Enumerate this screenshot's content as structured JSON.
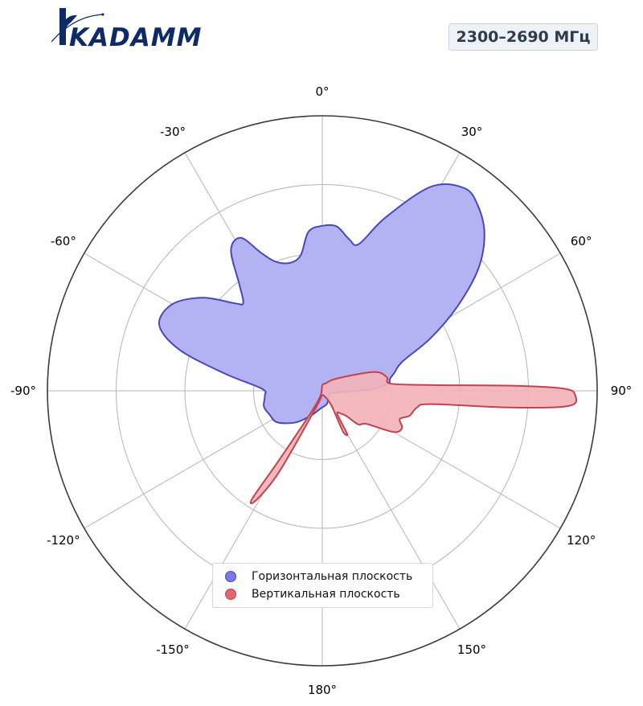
{
  "brand": {
    "name": "KADAMM"
  },
  "frequency_badge": "2300–2690 МГц",
  "chart_data": {
    "type": "polar-area",
    "title": "",
    "theta_zero": "top",
    "theta_direction": "clockwise",
    "theta_ticks": [
      0,
      30,
      60,
      90,
      120,
      150,
      180,
      -150,
      -120,
      -90,
      -60,
      -30
    ],
    "theta_tick_labels": [
      "0°",
      "30°",
      "60°",
      "90°",
      "120°",
      "150°",
      "180°",
      "-150°",
      "-120°",
      "-90°",
      "-60°",
      "-30°"
    ],
    "r_range": [
      0,
      1
    ],
    "r_grid": [
      0.25,
      0.5,
      0.75
    ],
    "grid": true,
    "legend_position": "bottom-center",
    "colors": {
      "horizontal_fill": "#b3b3f4",
      "horizontal_line": "#4b47b8",
      "vertical_fill": "#f2b3b9",
      "vertical_line": "#c0434f",
      "horizontal_marker": "#7b78ec",
      "vertical_marker": "#e06872"
    },
    "series": [
      {
        "name": "Горизонтальная плоскость",
        "points": [
          [
            0,
            0.6
          ],
          [
            5,
            0.6
          ],
          [
            10,
            0.56
          ],
          [
            14,
            0.55
          ],
          [
            20,
            0.67
          ],
          [
            28,
            0.84
          ],
          [
            35,
            0.9
          ],
          [
            40,
            0.88
          ],
          [
            46,
            0.82
          ],
          [
            52,
            0.72
          ],
          [
            58,
            0.58
          ],
          [
            64,
            0.44
          ],
          [
            70,
            0.31
          ],
          [
            76,
            0.27
          ],
          [
            80,
            0.25
          ],
          [
            84,
            0.24
          ],
          [
            88,
            0.18
          ],
          [
            93,
            0.08
          ],
          [
            100,
            0.04
          ],
          [
            120,
            0.03
          ],
          [
            160,
            0.05
          ],
          [
            180,
            0.06
          ],
          [
            -170,
            0.07
          ],
          [
            -155,
            0.1
          ],
          [
            -140,
            0.15
          ],
          [
            -125,
            0.2
          ],
          [
            -115,
            0.21
          ],
          [
            -105,
            0.22
          ],
          [
            -95,
            0.21
          ],
          [
            -88,
            0.22
          ],
          [
            -80,
            0.36
          ],
          [
            -74,
            0.54
          ],
          [
            -68,
            0.64
          ],
          [
            -60,
            0.63
          ],
          [
            -52,
            0.55
          ],
          [
            -45,
            0.45
          ],
          [
            -42,
            0.43
          ],
          [
            -38,
            0.49
          ],
          [
            -33,
            0.61
          ],
          [
            -28,
            0.63
          ],
          [
            -24,
            0.55
          ],
          [
            -20,
            0.5
          ],
          [
            -14,
            0.48
          ],
          [
            -9,
            0.5
          ],
          [
            -5,
            0.58
          ]
        ]
      },
      {
        "name": "Вертикальная плоскость",
        "points": [
          [
            0,
            0.02
          ],
          [
            25,
            0.03
          ],
          [
            50,
            0.07
          ],
          [
            70,
            0.2
          ],
          [
            78,
            0.24
          ],
          [
            84,
            0.25
          ],
          [
            87,
            0.4
          ],
          [
            88.5,
            0.7
          ],
          [
            89.5,
            0.88
          ],
          [
            91,
            0.92
          ],
          [
            93.5,
            0.9
          ],
          [
            95,
            0.7
          ],
          [
            97,
            0.4
          ],
          [
            100,
            0.35
          ],
          [
            106,
            0.33
          ],
          [
            110,
            0.3
          ],
          [
            115,
            0.32
          ],
          [
            120,
            0.3
          ],
          [
            127,
            0.2
          ],
          [
            133,
            0.18
          ],
          [
            136,
            0.13
          ],
          [
            140,
            0.11
          ],
          [
            147,
            0.1
          ],
          [
            150,
            0.18
          ],
          [
            153,
            0.17
          ],
          [
            152,
            0.12
          ],
          [
            148,
            0.06
          ],
          [
            160,
            0.02
          ],
          [
            -170,
            0.02
          ],
          [
            -160,
            0.06
          ],
          [
            -152,
            0.33
          ],
          [
            -149,
            0.46
          ],
          [
            -147,
            0.47
          ],
          [
            -148,
            0.3
          ],
          [
            -152,
            0.1
          ],
          [
            -160,
            0.02
          ]
        ]
      }
    ]
  }
}
